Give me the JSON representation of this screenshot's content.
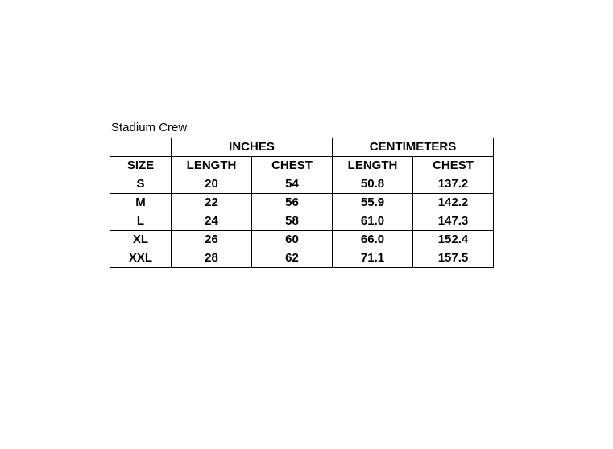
{
  "title": "Stadium Crew",
  "groups": [
    "INCHES",
    "CENTIMETERS"
  ],
  "headers": [
    "SIZE",
    "LENGTH",
    "CHEST",
    "LENGTH",
    "CHEST"
  ],
  "rows": [
    [
      "S",
      "20",
      "54",
      "50.8",
      "137.2"
    ],
    [
      "M",
      "22",
      "56",
      "55.9",
      "142.2"
    ],
    [
      "L",
      "24",
      "58",
      "61.0",
      "147.3"
    ],
    [
      "XL",
      "26",
      "60",
      "66.0",
      "152.4"
    ],
    [
      "XXL",
      "28",
      "62",
      "71.1",
      "157.5"
    ]
  ]
}
